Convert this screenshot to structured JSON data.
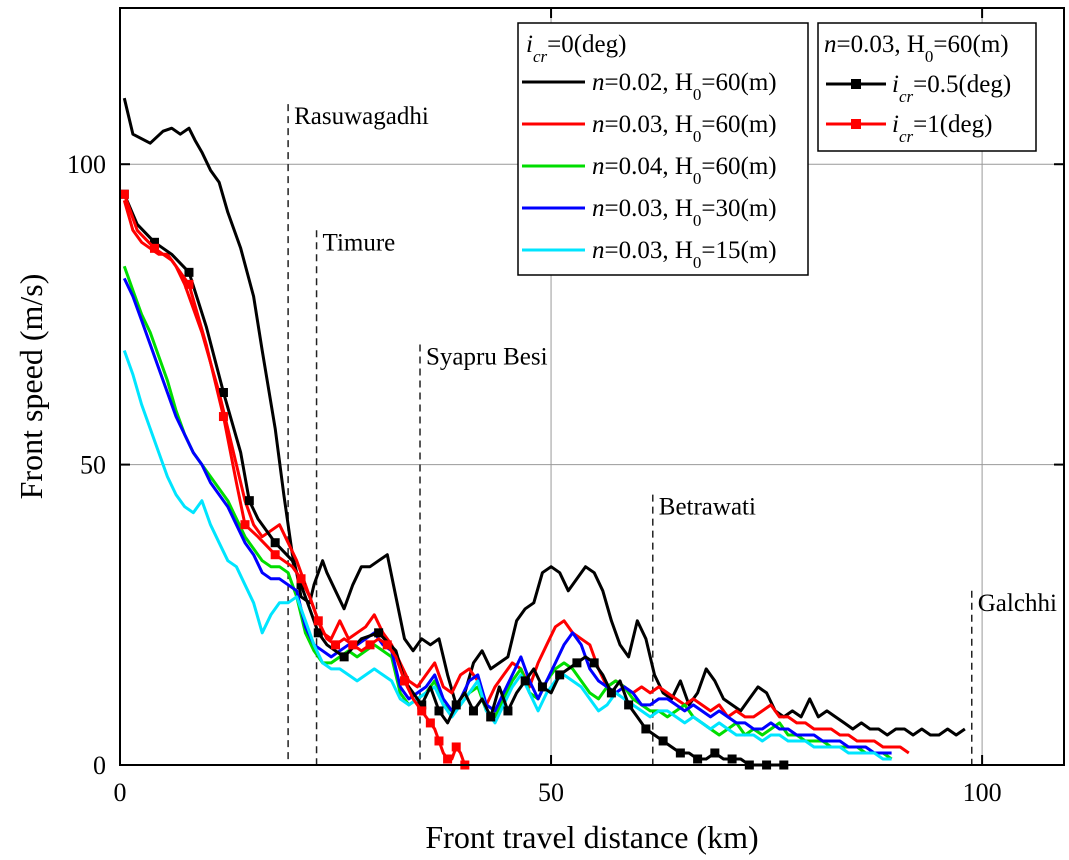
{
  "chart_data": {
    "type": "line",
    "xlabel": "Front travel distance (km)",
    "ylabel": "Front speed (m/s)",
    "xlim": [
      0,
      109.5
    ],
    "ylim": [
      0,
      126
    ],
    "xticks": [
      0,
      50,
      100
    ],
    "yticks": [
      0,
      50,
      100
    ],
    "grid": true,
    "legend_placement": "top-right",
    "legend_groups": [
      {
        "header_var": "i",
        "header_sub": "cr",
        "header_rest": "=0(deg)",
        "entries": [
          {
            "series": 0,
            "italic": "n",
            "rest": "=0.02, H",
            "sub": "0",
            "tail": "=60(m)"
          },
          {
            "series": 1,
            "italic": "n",
            "rest": "=0.03, H",
            "sub": "0",
            "tail": "=60(m)"
          },
          {
            "series": 2,
            "italic": "n",
            "rest": "=0.04, H",
            "sub": "0",
            "tail": "=60(m)"
          },
          {
            "series": 3,
            "italic": "n",
            "rest": "=0.03, H",
            "sub": "0",
            "tail": "=30(m)"
          },
          {
            "series": 4,
            "italic": "n",
            "rest": "=0.03, H",
            "sub": "0",
            "tail": "=15(m)"
          }
        ]
      },
      {
        "header_var": "n",
        "header_sub": "",
        "header_rest": "=0.03, H",
        "header_sub2": "0",
        "header_tail": "=60(m)",
        "entries": [
          {
            "series": 5,
            "italic": "i",
            "sub": "cr",
            "rest": "=0.5(deg)"
          },
          {
            "series": 6,
            "italic": "i",
            "sub": "cr",
            "rest": "=1(deg)"
          }
        ]
      }
    ],
    "series": [
      {
        "name": "n=0.02, H0=60(m)",
        "color": "#000000",
        "marker": "none",
        "x": [
          0.5,
          1.5,
          3.5,
          5,
          6,
          7,
          8,
          8.7,
          9.5,
          10.5,
          11.5,
          12.5,
          14,
          15.5,
          16.5,
          18,
          19,
          20,
          20.5,
          21,
          22,
          22.5,
          23.5,
          24,
          25,
          26,
          27,
          28,
          29,
          30,
          31,
          32,
          33,
          34,
          35,
          36,
          37,
          38,
          39,
          40,
          41,
          42,
          43,
          44,
          45,
          46,
          47,
          48,
          49,
          50,
          51,
          52,
          53,
          54,
          55,
          56,
          57,
          58,
          59,
          60,
          61,
          62,
          63,
          64,
          65,
          66,
          67,
          68,
          69,
          70,
          71,
          72,
          73,
          74,
          75,
          76,
          77,
          78,
          79,
          80,
          81,
          82,
          83,
          84,
          85,
          86,
          87,
          88,
          89,
          90,
          91,
          92,
          93,
          94,
          95,
          96,
          97,
          98
        ],
        "y": [
          111,
          105,
          103.5,
          105.5,
          106,
          105,
          106,
          104,
          102,
          99,
          97,
          92,
          86,
          78,
          69,
          56,
          45,
          35,
          32,
          28,
          27,
          30,
          34,
          32,
          29,
          26,
          30,
          33,
          33,
          34,
          35,
          28,
          21,
          19,
          21,
          20,
          21,
          15,
          10,
          12,
          17,
          19,
          16,
          17,
          18,
          24,
          26,
          27,
          32,
          33,
          32,
          29,
          31,
          33,
          32,
          29,
          24,
          20,
          18,
          24,
          21,
          15,
          12,
          11,
          14,
          10,
          12,
          16,
          14,
          11,
          10,
          9,
          11,
          13,
          12,
          9,
          8,
          9,
          8,
          11,
          8,
          9,
          8,
          7,
          6,
          7,
          6,
          6,
          5,
          6,
          6,
          5,
          6,
          5,
          5,
          6,
          5,
          6
        ]
      },
      {
        "name": "n=0.03, H0=60(m)",
        "color": "#ff0000",
        "marker": "none",
        "x": [
          0.5,
          1.5,
          2.5,
          3.5,
          4.5,
          5.5,
          6.5,
          7.5,
          8.5,
          9.5,
          10.5,
          11.5,
          12.5,
          13.5,
          14.5,
          15.5,
          16.5,
          17.5,
          18.5,
          19.5,
          20.5,
          21.5,
          22.5,
          23.5,
          24.5,
          25.5,
          26.5,
          27.5,
          28.5,
          29.5,
          30.5,
          31.5,
          32.5,
          33.5,
          34.5,
          35.5,
          36.5,
          37.5,
          38.5,
          39.5,
          40.5,
          41.5,
          42.5,
          43.5,
          44.5,
          45.5,
          46.5,
          47.5,
          48.5,
          49.5,
          50.5,
          51.5,
          52.5,
          53.5,
          54.5,
          55.5,
          56.5,
          57.5,
          58.5,
          59.5,
          60.5,
          61.5,
          62.5,
          63.5,
          64.5,
          65.5,
          66.5,
          67.5,
          68.5,
          69.5,
          70.5,
          71.5,
          72.5,
          73.5,
          74.5,
          75.5,
          76.5,
          77.5,
          78.5,
          79.5,
          80.5,
          81.5,
          82.5,
          83.5,
          84.5,
          85.5,
          86.5,
          87.5,
          88.5,
          89.5,
          90.5,
          91.5
        ],
        "y": [
          94,
          89,
          87,
          86,
          85,
          85,
          83,
          80,
          76,
          72,
          67,
          62,
          56,
          50,
          44,
          40,
          38,
          39,
          40,
          37,
          34,
          30,
          26,
          22,
          21,
          24,
          21,
          22,
          23,
          25,
          22,
          20,
          17,
          14,
          13,
          15,
          17,
          13,
          12,
          15,
          16,
          14,
          10,
          13,
          15,
          17,
          16,
          13,
          17,
          20,
          23,
          24,
          22,
          21,
          20,
          16,
          13,
          14,
          13,
          12,
          13,
          12,
          13,
          12,
          11,
          10,
          11,
          10,
          9,
          10,
          8,
          9,
          8,
          8,
          9,
          10,
          8,
          8,
          7,
          7,
          6,
          6,
          6,
          5,
          5,
          4,
          4,
          4,
          3,
          3,
          3,
          2
        ]
      },
      {
        "name": "n=0.04, H0=60(m)",
        "color": "#00dd00",
        "marker": "none",
        "x": [
          0.5,
          1.5,
          2.5,
          3.5,
          4.5,
          5.5,
          6.5,
          7.5,
          8.5,
          9.5,
          10.5,
          11.5,
          12.5,
          13.5,
          14.5,
          15.5,
          16.5,
          17.5,
          18.5,
          19.5,
          20.5,
          21.5,
          22.5,
          23.5,
          24.5,
          25.5,
          26.5,
          27.5,
          28.5,
          29.5,
          30.5,
          31.5,
          32.5,
          33.5,
          34.5,
          35.5,
          36.5,
          37.5,
          38.5,
          39.5,
          40.5,
          41.5,
          42.5,
          43.5,
          44.5,
          45.5,
          46.5,
          47.5,
          48.5,
          49.5,
          50.5,
          51.5,
          52.5,
          53.5,
          54.5,
          55.5,
          56.5,
          57.5,
          58.5,
          59.5,
          60.5,
          61.5,
          62.5,
          63.5,
          64.5,
          65.5,
          66.5,
          67.5,
          68.5,
          69.5,
          70.5,
          71.5,
          72.5,
          73.5,
          74.5,
          75.5,
          76.5,
          77.5,
          78.5,
          79.5,
          80.5,
          81.5,
          82.5,
          83.5,
          84.5,
          85.5,
          86.5,
          87.5,
          88.5,
          89.5
        ],
        "y": [
          83,
          79,
          75,
          72,
          68,
          64,
          59,
          55,
          52,
          50,
          48,
          46,
          44,
          41,
          38,
          36,
          34,
          33,
          33,
          32,
          28,
          22,
          19,
          17,
          17,
          18,
          19,
          18,
          19,
          20,
          19,
          18,
          12,
          10,
          11,
          12,
          14,
          10,
          9,
          10,
          12,
          13,
          9,
          8,
          11,
          14,
          16,
          12,
          11,
          14,
          16,
          17,
          16,
          14,
          12,
          11,
          13,
          14,
          13,
          11,
          10,
          9,
          9,
          8,
          9,
          10,
          8,
          7,
          6,
          5,
          6,
          7,
          5,
          6,
          5,
          6,
          7,
          5,
          5,
          4,
          4,
          4,
          3,
          3,
          3,
          3,
          2,
          2,
          2,
          1
        ]
      },
      {
        "name": "n=0.03, H0=30(m)",
        "color": "#0000ff",
        "marker": "none",
        "x": [
          0.5,
          1.5,
          2.5,
          3.5,
          4.5,
          5.5,
          6.5,
          7.5,
          8.5,
          9.5,
          10.5,
          11.5,
          12.5,
          13.5,
          14.5,
          15.5,
          16.5,
          17.5,
          18.5,
          19.5,
          20.5,
          21.5,
          22.5,
          23.5,
          24.5,
          25.5,
          26.5,
          27.5,
          28.5,
          29.5,
          30.5,
          31.5,
          32.5,
          33.5,
          34.5,
          35.5,
          36.5,
          37.5,
          38.5,
          39.5,
          40.5,
          41.5,
          42.5,
          43.5,
          44.5,
          45.5,
          46.5,
          47.5,
          48.5,
          49.5,
          50.5,
          51.5,
          52.5,
          53.5,
          54.5,
          55.5,
          56.5,
          57.5,
          58.5,
          59.5,
          60.5,
          61.5,
          62.5,
          63.5,
          64.5,
          65.5,
          66.5,
          67.5,
          68.5,
          69.5,
          70.5,
          71.5,
          72.5,
          73.5,
          74.5,
          75.5,
          76.5,
          77.5,
          78.5,
          79.5,
          80.5,
          81.5,
          82.5,
          83.5,
          84.5,
          85.5,
          86.5,
          87.5,
          88.5,
          89.5
        ],
        "y": [
          81,
          78,
          74,
          70,
          66,
          62,
          58,
          55,
          52,
          50,
          47,
          45,
          43,
          40,
          37,
          35,
          32,
          31,
          31,
          30,
          29,
          23,
          20,
          19,
          18,
          19,
          20,
          20,
          21,
          22,
          20,
          19,
          13,
          11,
          12,
          13,
          15,
          11,
          9,
          11,
          14,
          15,
          10,
          9,
          12,
          15,
          18,
          14,
          11,
          14,
          17,
          20,
          22,
          20,
          16,
          14,
          13,
          12,
          13,
          12,
          10,
          10,
          11,
          11,
          10,
          9,
          10,
          9,
          8,
          9,
          8,
          7,
          7,
          6,
          6,
          7,
          6,
          6,
          5,
          5,
          5,
          4,
          4,
          4,
          3,
          3,
          3,
          2,
          2,
          2
        ]
      },
      {
        "name": "n=0.03, H0=15(m)",
        "color": "#00e5ff",
        "marker": "none",
        "x": [
          0.5,
          1.5,
          2.5,
          3.5,
          4.5,
          5.5,
          6.5,
          7.5,
          8.5,
          9.5,
          10.5,
          11.5,
          12.5,
          13.5,
          14.5,
          15.5,
          16.5,
          17.5,
          18.5,
          19.5,
          20.5,
          21.5,
          22.5,
          23.5,
          24.5,
          25.5,
          26.5,
          27.5,
          28.5,
          29.5,
          30.5,
          31.5,
          32.5,
          33.5,
          34.5,
          35.5,
          36.5,
          37.5,
          38.5,
          39.5,
          40.5,
          41.5,
          42.5,
          43.5,
          44.5,
          45.5,
          46.5,
          47.5,
          48.5,
          49.5,
          50.5,
          51.5,
          52.5,
          53.5,
          54.5,
          55.5,
          56.5,
          57.5,
          58.5,
          59.5,
          60.5,
          61.5,
          62.5,
          63.5,
          64.5,
          65.5,
          66.5,
          67.5,
          68.5,
          69.5,
          70.5,
          71.5,
          72.5,
          73.5,
          74.5,
          75.5,
          76.5,
          77.5,
          78.5,
          79.5,
          80.5,
          81.5,
          82.5,
          83.5,
          84.5,
          85.5,
          86.5,
          87.5,
          88.5,
          89.5
        ],
        "y": [
          69,
          65,
          60,
          56,
          52,
          48,
          45,
          43,
          42,
          44,
          40,
          37,
          34,
          33,
          30,
          27,
          22,
          25,
          27,
          27,
          28,
          24,
          20,
          17,
          16,
          16,
          15,
          14,
          15,
          16,
          15,
          14,
          11,
          10,
          11,
          12,
          13,
          10,
          8,
          10,
          12,
          14,
          9,
          7,
          10,
          13,
          15,
          12,
          9,
          12,
          14,
          15,
          14,
          13,
          11,
          9,
          10,
          12,
          11,
          10,
          9,
          8,
          9,
          9,
          8,
          7,
          8,
          7,
          6,
          7,
          6,
          5,
          5,
          5,
          4,
          5,
          5,
          4,
          4,
          4,
          3,
          3,
          3,
          3,
          2,
          2,
          2,
          2,
          1,
          1
        ]
      },
      {
        "name": "icr=0.5(deg)",
        "color": "#000000",
        "marker": "square",
        "x": [
          0.5,
          2,
          4,
          6,
          8,
          10,
          12,
          14,
          15,
          16,
          18,
          20,
          21,
          22,
          23,
          24,
          26,
          28,
          30,
          32,
          33,
          34,
          35,
          36,
          37,
          38,
          39,
          40,
          41,
          42,
          43,
          44,
          45,
          46,
          47,
          48,
          49,
          50,
          51,
          52,
          53,
          54,
          55,
          56,
          57,
          58,
          59,
          60,
          61,
          62,
          63,
          64,
          65,
          66,
          67,
          68,
          69,
          70,
          71,
          72,
          73,
          74,
          75,
          76,
          77
        ],
        "y": [
          95,
          90,
          87,
          85,
          82,
          73,
          62,
          52,
          44,
          41,
          37,
          34,
          30,
          26,
          22,
          20,
          18,
          21,
          22,
          19,
          14,
          12,
          10,
          13,
          9,
          7,
          10,
          12,
          9,
          11,
          8,
          13,
          9,
          12,
          14,
          16,
          13,
          12,
          15,
          16,
          17,
          18,
          17,
          15,
          12,
          14,
          10,
          8,
          6,
          5,
          4,
          3,
          2,
          2,
          1,
          1,
          2,
          1,
          1,
          1,
          0,
          0,
          0,
          0,
          0
        ]
      },
      {
        "name": "icr=1(deg)",
        "color": "#ff0000",
        "marker": "square",
        "x": [
          0.5,
          2,
          4,
          6,
          8,
          10,
          12,
          13.5,
          14.5,
          16,
          18,
          20,
          21,
          22,
          23,
          24,
          25,
          26,
          27,
          28,
          29,
          30,
          31,
          32,
          33,
          34,
          35,
          35.5,
          36,
          36.5,
          37,
          37.5,
          38,
          38.5,
          39,
          39.5,
          40
        ],
        "y": [
          95,
          89,
          86,
          84,
          80,
          70,
          58,
          47,
          40,
          38,
          35,
          33,
          31,
          28,
          24,
          21,
          20,
          21,
          20,
          19,
          20,
          21,
          20,
          18,
          14,
          11,
          9,
          8,
          7,
          6,
          4,
          2,
          1,
          1,
          3,
          2,
          0
        ]
      }
    ],
    "annotations": [
      {
        "text": "Rasuwagadhi",
        "x": 19.5,
        "y_top": 110
      },
      {
        "text": "Timure",
        "x": 22.8,
        "y_top": 89
      },
      {
        "text": "Syapru Besi",
        "x": 34.8,
        "y_top": 70
      },
      {
        "text": "Betrawati",
        "x": 61.8,
        "y_top": 45
      },
      {
        "text": "Galchhi",
        "x": 98.8,
        "y_top": 29
      }
    ]
  }
}
